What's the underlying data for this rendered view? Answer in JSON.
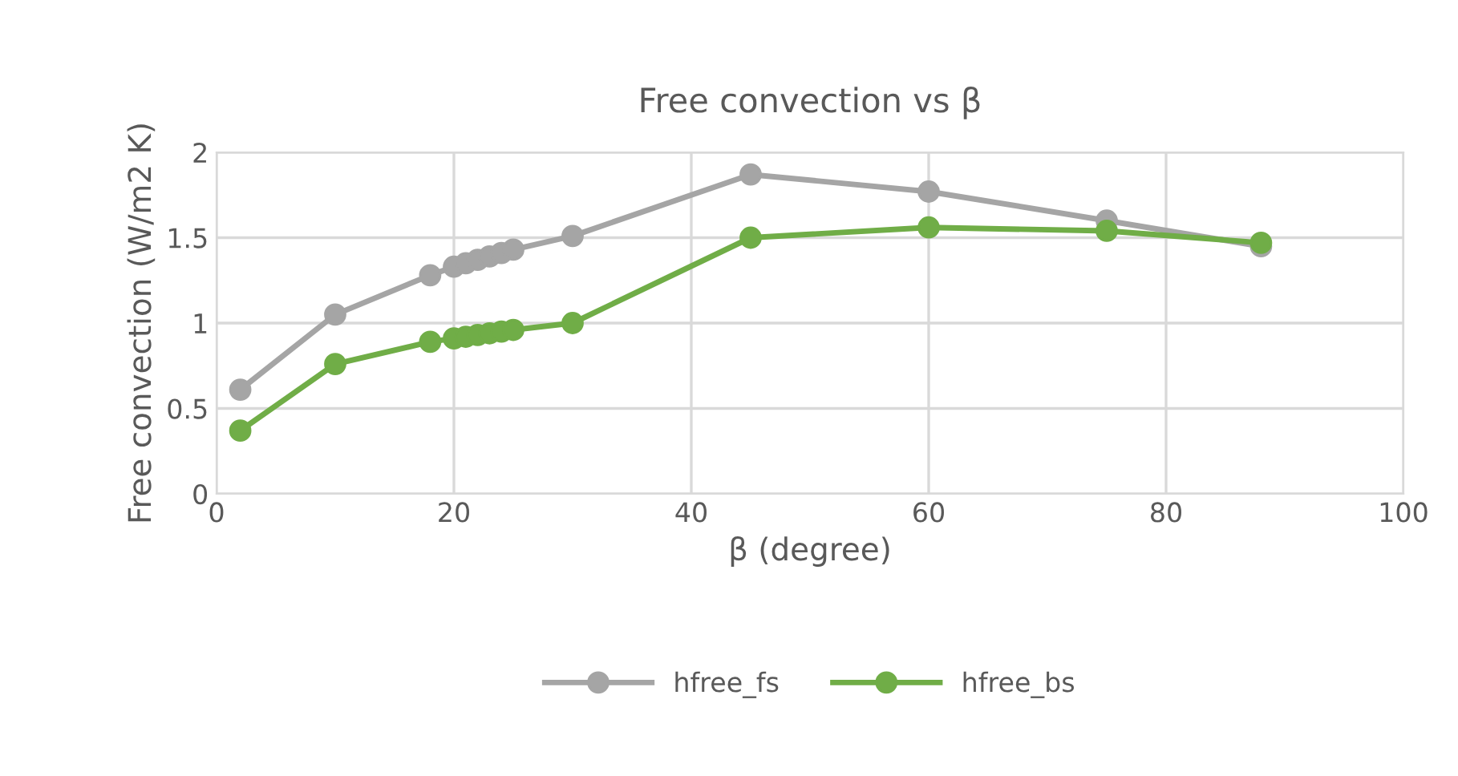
{
  "chart_data": {
    "type": "line",
    "title": "Free convection vs β",
    "xlabel": "β (degree)",
    "ylabel": "Free convection (W/m2 K)",
    "x": [
      2,
      10,
      18,
      20,
      21,
      22,
      23,
      24,
      25,
      30,
      45,
      60,
      75,
      88
    ],
    "series": [
      {
        "name": "hfree_fs",
        "color": "#a5a5a5",
        "values": [
          0.61,
          1.05,
          1.28,
          1.33,
          1.35,
          1.37,
          1.39,
          1.41,
          1.43,
          1.51,
          1.87,
          1.77,
          1.6,
          1.45
        ]
      },
      {
        "name": "hfree_bs",
        "color": "#70ad47",
        "values": [
          0.37,
          0.76,
          0.89,
          0.91,
          0.92,
          0.93,
          0.94,
          0.95,
          0.96,
          1.0,
          1.5,
          1.56,
          1.54,
          1.47
        ]
      }
    ],
    "xlim": [
      0,
      100
    ],
    "xticks": [
      0,
      20,
      40,
      60,
      80,
      100
    ],
    "ylim": [
      0,
      2
    ],
    "yticks": [
      0,
      0.5,
      1,
      1.5,
      2
    ],
    "grid": true,
    "legend": "bottom",
    "marker": "circle",
    "line_style": "solid"
  }
}
